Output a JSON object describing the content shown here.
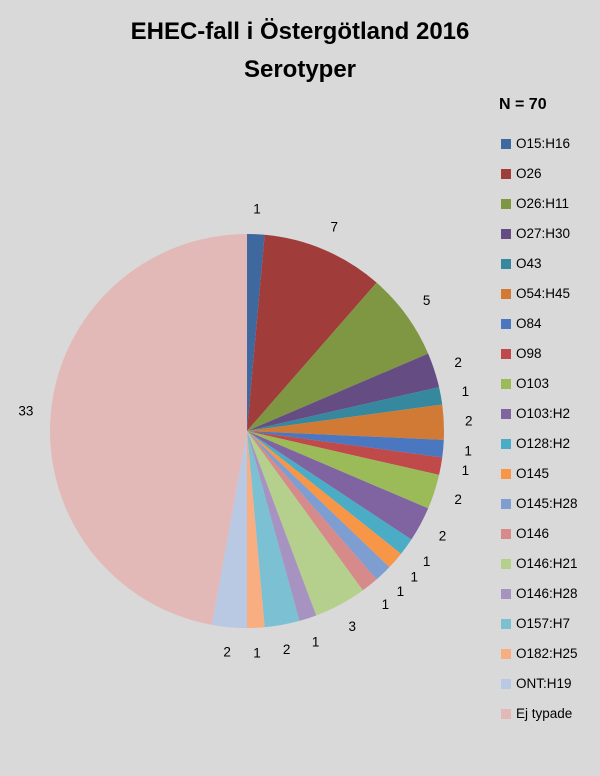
{
  "chart_data": {
    "type": "pie",
    "title": "EHEC-fall i Östergötland 2016",
    "subtitle": "Serotyper",
    "total_label": "N = 70",
    "start_angle_deg": 0,
    "direction": "clockwise",
    "legend_position": "right",
    "slices": [
      {
        "label": "O15:H16",
        "value": 1,
        "color": "#3f689f"
      },
      {
        "label": "O26",
        "value": 7,
        "color": "#a03c3a"
      },
      {
        "label": "O26:H11",
        "value": 5,
        "color": "#7f9743"
      },
      {
        "label": "O27:H30",
        "value": 2,
        "color": "#654d84"
      },
      {
        "label": "O43",
        "value": 1,
        "color": "#35889e"
      },
      {
        "label": "O54:H45",
        "value": 2,
        "color": "#d07a35"
      },
      {
        "label": "O84",
        "value": 1,
        "color": "#4a77c0"
      },
      {
        "label": "O98",
        "value": 1,
        "color": "#c0494a"
      },
      {
        "label": "O103",
        "value": 2,
        "color": "#9bbb59"
      },
      {
        "label": "O103:H2",
        "value": 2,
        "color": "#8064a2"
      },
      {
        "label": "O128:H2",
        "value": 1,
        "color": "#4bacc6"
      },
      {
        "label": "O145",
        "value": 1,
        "color": "#f79646"
      },
      {
        "label": "O145:H28",
        "value": 1,
        "color": "#7e9dd0"
      },
      {
        "label": "O146",
        "value": 1,
        "color": "#d68a89"
      },
      {
        "label": "O146:H21",
        "value": 3,
        "color": "#b5cf8c"
      },
      {
        "label": "O146:H28",
        "value": 1,
        "color": "#a693c1"
      },
      {
        "label": "O157:H7",
        "value": 2,
        "color": "#7bc0d3"
      },
      {
        "label": "O182:H25",
        "value": 1,
        "color": "#f9ae82"
      },
      {
        "label": "ONT:H19",
        "value": 2,
        "color": "#b9c8e3"
      },
      {
        "label": "Ej typade",
        "value": 33,
        "color": "#e3b9b8"
      }
    ]
  }
}
